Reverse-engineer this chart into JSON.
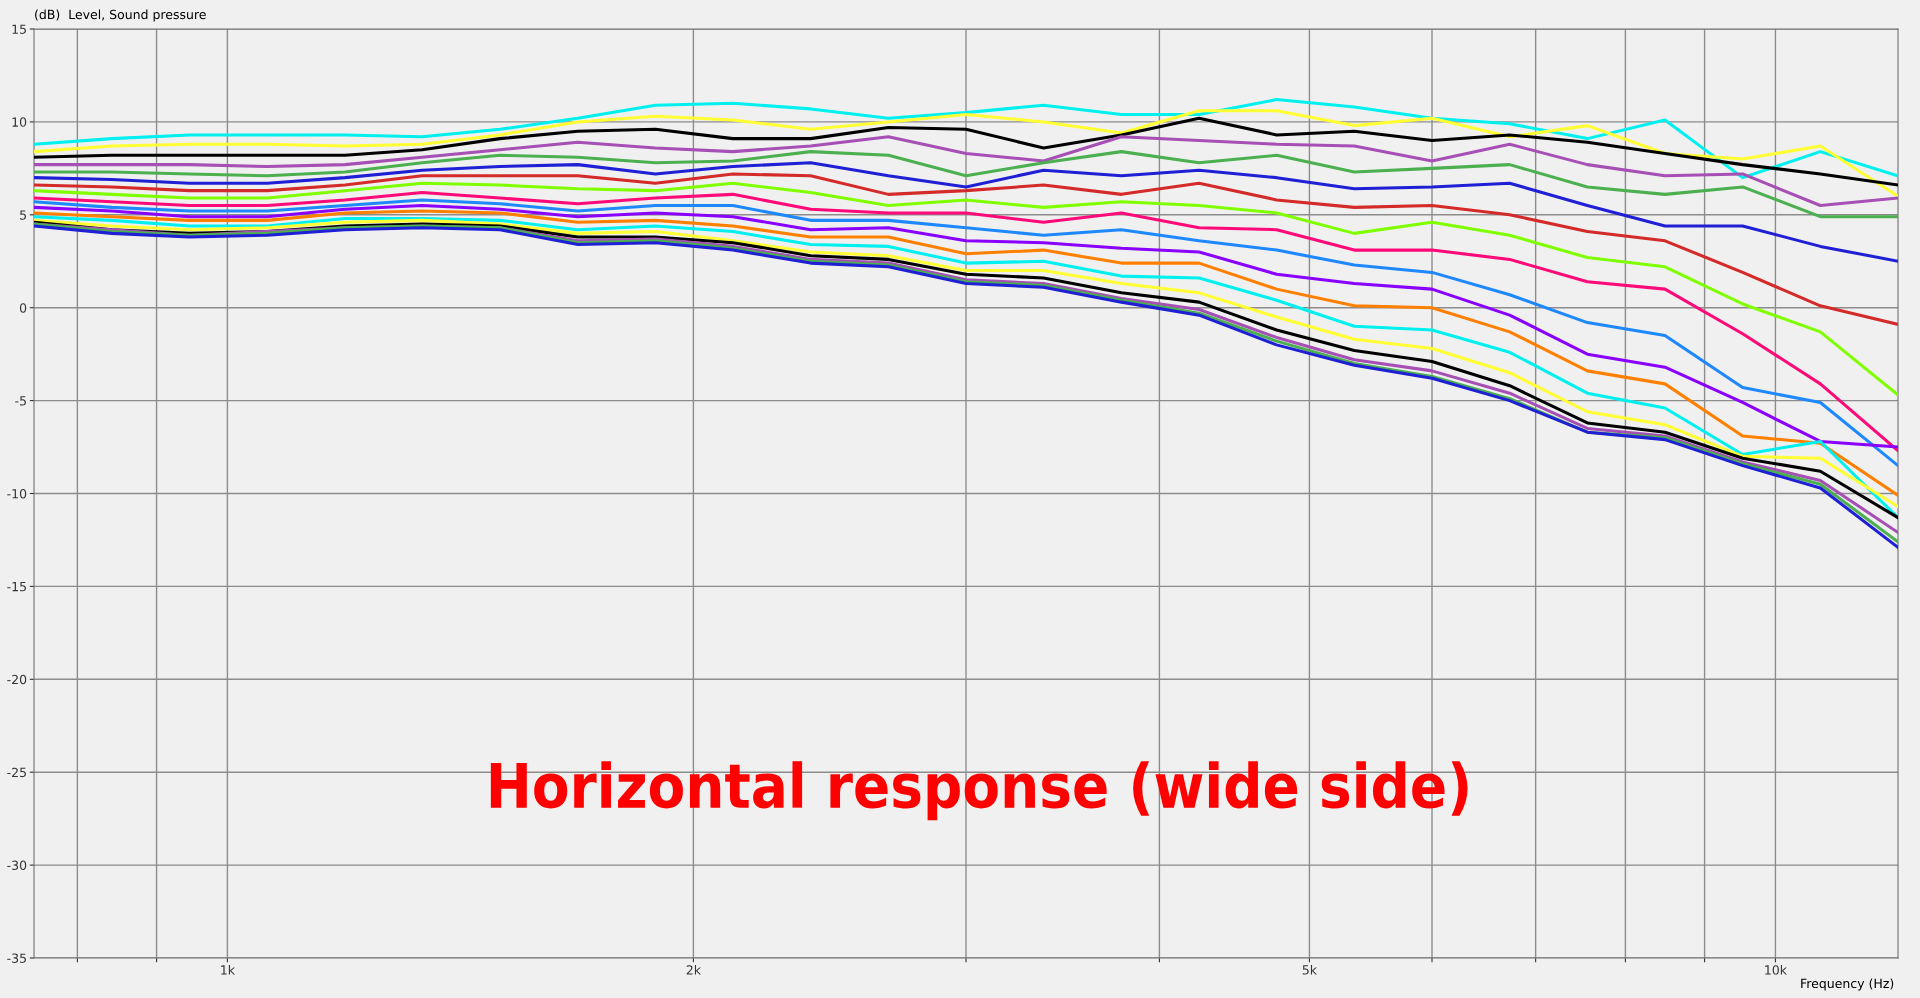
{
  "chart_data": {
    "type": "line",
    "xlabel": "Frequency (Hz)",
    "ylabel": "(dB)  Level, Sound pressure",
    "annotations": [
      "Horizontal response (wide side)"
    ],
    "log": "x",
    "grid": true,
    "marker": "none",
    "line_style": "solid",
    "xlim": [
      750,
      12000
    ],
    "ylim": [
      -35,
      15
    ],
    "xticks": [
      {
        "value": 800,
        "label": null
      },
      {
        "value": 900,
        "label": null
      },
      {
        "value": 1000,
        "label": "1k"
      },
      {
        "value": 2000,
        "label": "2k"
      },
      {
        "value": 3000,
        "label": null
      },
      {
        "value": 4000,
        "label": null
      },
      {
        "value": 5000,
        "label": "5k"
      },
      {
        "value": 6000,
        "label": null
      },
      {
        "value": 7000,
        "label": null
      },
      {
        "value": 8000,
        "label": null
      },
      {
        "value": 9000,
        "label": null
      },
      {
        "value": 10000,
        "label": "10k"
      }
    ],
    "yticks": [
      -35,
      -30,
      -25,
      -20,
      -15,
      -10,
      -5,
      0,
      5,
      10,
      15
    ],
    "x": [
      750,
      842,
      945,
      1061,
      1191,
      1336,
      1500,
      1684,
      1890,
      2121,
      2381,
      2673,
      3000,
      3367,
      3780,
      4243,
      4762,
      5345,
      6000,
      6735,
      7560,
      8485,
      9524,
      10691,
      12000
    ],
    "series": [
      {
        "color": "#00f0f0",
        "values": [
          8.8,
          9.1,
          9.3,
          9.3,
          9.3,
          9.2,
          9.6,
          10.2,
          10.9,
          11.0,
          10.7,
          10.2,
          10.5,
          10.9,
          10.4,
          10.4,
          11.2,
          10.8,
          10.2,
          9.9,
          9.1,
          10.1,
          7.0,
          8.4,
          7.1
        ]
      },
      {
        "color": "#ffff33",
        "values": [
          8.4,
          8.7,
          8.8,
          8.8,
          8.7,
          8.8,
          9.3,
          10.0,
          10.3,
          10.1,
          9.6,
          10.0,
          10.4,
          10.0,
          9.4,
          10.6,
          10.6,
          9.8,
          10.2,
          9.2,
          9.8,
          8.3,
          8.0,
          8.7,
          6.0
        ]
      },
      {
        "color": "#000000",
        "values": [
          8.1,
          8.2,
          8.2,
          8.2,
          8.2,
          8.5,
          9.1,
          9.5,
          9.6,
          9.1,
          9.1,
          9.7,
          9.6,
          8.6,
          9.3,
          10.2,
          9.3,
          9.5,
          9.0,
          9.3,
          8.9,
          8.3,
          7.7,
          7.2,
          6.6
        ]
      },
      {
        "color": "#a64fb4",
        "values": [
          7.7,
          7.7,
          7.7,
          7.6,
          7.7,
          8.1,
          8.5,
          8.9,
          8.6,
          8.4,
          8.7,
          9.2,
          8.3,
          7.9,
          9.2,
          9.0,
          8.8,
          8.7,
          7.9,
          8.8,
          7.7,
          7.1,
          7.2,
          5.5,
          5.9
        ]
      },
      {
        "color": "#4caf50",
        "values": [
          7.3,
          7.3,
          7.2,
          7.1,
          7.3,
          7.8,
          8.2,
          8.1,
          7.8,
          7.9,
          8.4,
          8.2,
          7.1,
          7.8,
          8.4,
          7.8,
          8.2,
          7.3,
          7.5,
          7.7,
          6.5,
          6.1,
          6.5,
          4.9,
          4.9
        ]
      },
      {
        "color": "#1f1fd6",
        "values": [
          7.0,
          6.9,
          6.7,
          6.7,
          7.0,
          7.4,
          7.6,
          7.7,
          7.2,
          7.6,
          7.8,
          7.1,
          6.5,
          7.4,
          7.1,
          7.4,
          7.0,
          6.4,
          6.5,
          6.7,
          5.5,
          4.4,
          4.4,
          3.3,
          2.5
        ]
      },
      {
        "color": "#d42a2a",
        "values": [
          6.6,
          6.5,
          6.3,
          6.3,
          6.6,
          7.1,
          7.1,
          7.1,
          6.7,
          7.2,
          7.1,
          6.1,
          6.3,
          6.6,
          6.1,
          6.7,
          5.8,
          5.4,
          5.5,
          5.0,
          4.1,
          3.6,
          1.9,
          0.1,
          -0.9
        ]
      },
      {
        "color": "#80ff00",
        "values": [
          6.3,
          6.1,
          5.9,
          5.9,
          6.3,
          6.7,
          6.6,
          6.4,
          6.3,
          6.7,
          6.2,
          5.5,
          5.8,
          5.4,
          5.7,
          5.5,
          5.1,
          4.0,
          4.6,
          3.9,
          2.7,
          2.2,
          0.2,
          -1.3,
          -4.7
        ]
      },
      {
        "color": "#ff0a78",
        "values": [
          5.9,
          5.7,
          5.5,
          5.5,
          5.8,
          6.2,
          5.9,
          5.6,
          5.9,
          6.1,
          5.3,
          5.1,
          5.1,
          4.6,
          5.1,
          4.3,
          4.2,
          3.1,
          3.1,
          2.6,
          1.4,
          1.0,
          -1.4,
          -4.1,
          -7.7
        ]
      },
      {
        "color": "#1e88ff",
        "values": [
          5.7,
          5.4,
          5.2,
          5.2,
          5.5,
          5.8,
          5.6,
          5.2,
          5.5,
          5.5,
          4.7,
          4.7,
          4.3,
          3.9,
          4.2,
          3.6,
          3.1,
          2.3,
          1.9,
          0.7,
          -0.8,
          -1.5,
          -4.3,
          -5.1,
          -8.5
        ]
      },
      {
        "color": "#8a00ff",
        "values": [
          5.4,
          5.2,
          4.9,
          4.9,
          5.3,
          5.5,
          5.3,
          4.9,
          5.1,
          4.9,
          4.2,
          4.3,
          3.6,
          3.5,
          3.2,
          3.0,
          1.8,
          1.3,
          1.0,
          -0.4,
          -2.5,
          -3.2,
          -5.1,
          -7.2,
          -7.5
        ]
      },
      {
        "color": "#ff8000",
        "values": [
          5.1,
          4.9,
          4.7,
          4.7,
          5.1,
          5.2,
          5.1,
          4.6,
          4.7,
          4.4,
          3.8,
          3.8,
          2.9,
          3.1,
          2.4,
          2.4,
          1.0,
          0.1,
          0.0,
          -1.3,
          -3.4,
          -4.1,
          -6.9,
          -7.3,
          -10.1
        ]
      },
      {
        "color": "#00f0f0",
        "values": [
          4.9,
          4.7,
          4.4,
          4.4,
          4.8,
          4.8,
          4.7,
          4.2,
          4.4,
          4.1,
          3.4,
          3.3,
          2.4,
          2.5,
          1.7,
          1.6,
          0.4,
          -1.0,
          -1.2,
          -2.4,
          -4.6,
          -5.4,
          -7.9,
          -7.2,
          -11.3
        ]
      },
      {
        "color": "#ffff33",
        "values": [
          4.7,
          4.4,
          4.2,
          4.3,
          4.6,
          4.7,
          4.5,
          4.0,
          4.1,
          3.6,
          3.0,
          2.8,
          2.0,
          2.0,
          1.3,
          0.8,
          -0.5,
          -1.7,
          -2.2,
          -3.5,
          -5.6,
          -6.3,
          -8.0,
          -8.1,
          -10.7
        ]
      },
      {
        "color": "#000000",
        "values": [
          4.6,
          4.2,
          4.0,
          4.1,
          4.4,
          4.5,
          4.4,
          3.8,
          3.8,
          3.5,
          2.8,
          2.6,
          1.8,
          1.6,
          0.8,
          0.3,
          -1.2,
          -2.3,
          -2.9,
          -4.2,
          -6.2,
          -6.7,
          -8.1,
          -8.8,
          -11.3
        ]
      },
      {
        "color": "#a64fb4",
        "values": [
          4.5,
          4.2,
          3.9,
          4.1,
          4.3,
          4.4,
          4.3,
          3.6,
          3.7,
          3.3,
          2.6,
          2.4,
          1.5,
          1.3,
          0.5,
          -0.1,
          -1.6,
          -2.8,
          -3.4,
          -4.6,
          -6.5,
          -6.9,
          -8.3,
          -9.3,
          -12.1
        ]
      },
      {
        "color": "#4caf50",
        "values": [
          4.5,
          4.1,
          3.9,
          4.0,
          4.3,
          4.4,
          4.3,
          3.5,
          3.6,
          3.2,
          2.5,
          2.3,
          1.4,
          1.2,
          0.4,
          -0.3,
          -1.8,
          -3.0,
          -3.7,
          -4.9,
          -6.7,
          -7.0,
          -8.4,
          -9.5,
          -12.6
        ]
      },
      {
        "color": "#1f1fd6",
        "values": [
          4.4,
          4.0,
          3.8,
          3.9,
          4.2,
          4.3,
          4.2,
          3.4,
          3.5,
          3.1,
          2.4,
          2.2,
          1.3,
          1.1,
          0.3,
          -0.4,
          -2.0,
          -3.1,
          -3.8,
          -5.0,
          -6.7,
          -7.1,
          -8.5,
          -9.7,
          -12.9
        ]
      }
    ]
  }
}
